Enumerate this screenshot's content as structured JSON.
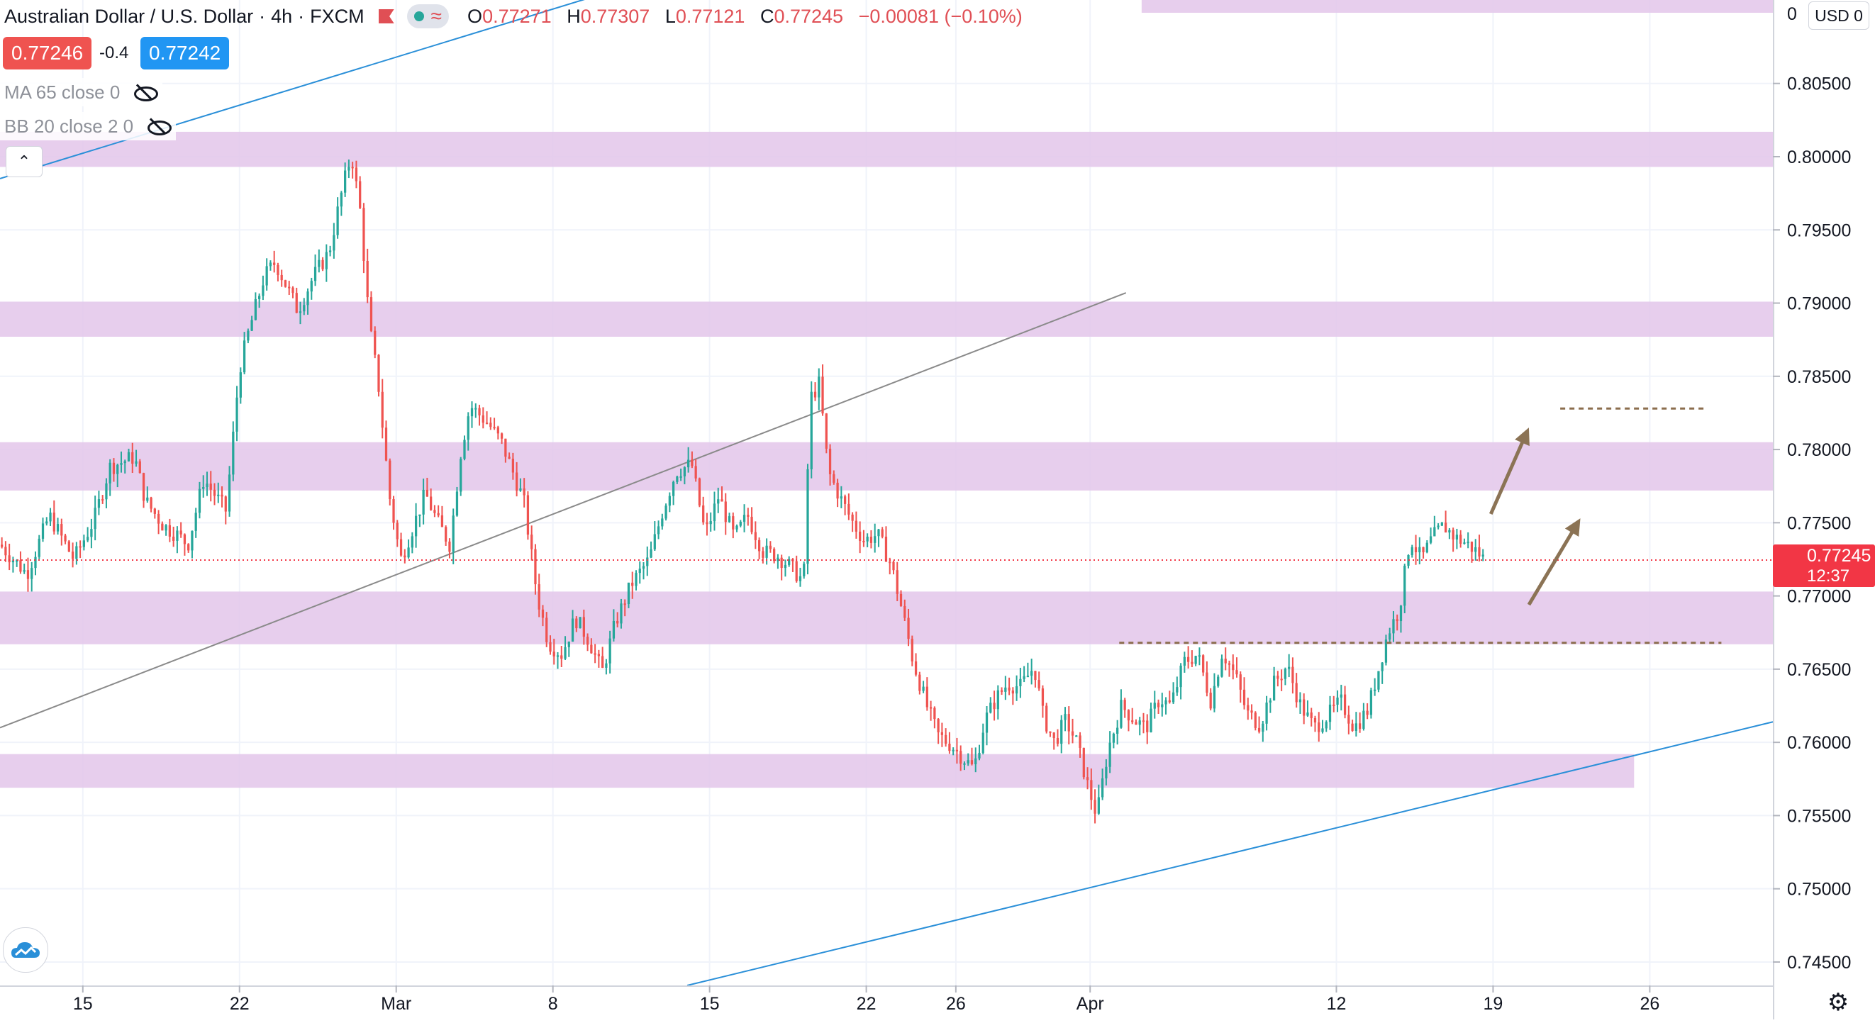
{
  "header": {
    "symbol": "Australian Dollar / U.S. Dollar",
    "interval": "4h",
    "exchange": "FXCM",
    "ohlc": {
      "open_label": "O",
      "open": "0.77271",
      "high_label": "H",
      "high": "0.77307",
      "low_label": "L",
      "low": "0.77121",
      "close_label": "C",
      "close": "0.77245",
      "change": "−0.00081 (−0.10%)"
    },
    "sell_price": "0.77246",
    "change_small": "-0.4",
    "buy_price": "0.77242"
  },
  "indicators": [
    {
      "label": "MA 65 close 0"
    },
    {
      "label": "BB 20 close 2 0"
    }
  ],
  "price_scale": {
    "currency": "USD",
    "currency_suffix": "0",
    "top_partial_label": "0",
    "last_price": "0.77245",
    "countdown": "12:37"
  },
  "colors": {
    "up": "#26a69a",
    "down": "#ef5350",
    "zone": "#e3c6ea",
    "trend_blue": "#2a8fd8",
    "trend_gray": "#8a8a8a",
    "level_brown": "#8b6e4e",
    "arrow_brown": "#8b7355",
    "last_price_red": "#f23645",
    "buy_blue": "#2196f3"
  },
  "chart_data": {
    "type": "candlestick",
    "title": "Australian Dollar / U.S. Dollar",
    "interval": "4h",
    "source": "FXCM",
    "y_axis": {
      "ticks": [
        0.745,
        0.75,
        0.755,
        0.76,
        0.765,
        0.77,
        0.775,
        0.78,
        0.785,
        0.79,
        0.795,
        0.8,
        0.805
      ],
      "tick_labels": [
        "0.74500",
        "0.75000",
        "0.75500",
        "0.76000",
        "0.76500",
        "0.77000",
        "0.77500",
        "0.78000",
        "0.78500",
        "0.79000",
        "0.79500",
        "0.80000",
        "0.80500"
      ],
      "range": [
        0.7434,
        0.8107
      ]
    },
    "x_axis": {
      "ticks": [
        {
          "label": "15",
          "day": 15
        },
        {
          "label": "22",
          "day": 22
        },
        {
          "label": "Mar",
          "day": 29
        },
        {
          "label": "8",
          "day": 36
        },
        {
          "label": "15",
          "day": 43
        },
        {
          "label": "22",
          "day": 50
        },
        {
          "label": "26",
          "day": 54
        },
        {
          "label": "Apr",
          "day": 60
        },
        {
          "label": "12",
          "day": 71
        },
        {
          "label": "19",
          "day": 78
        },
        {
          "label": "26",
          "day": 85
        }
      ],
      "range_days": [
        11.3,
        90.5
      ],
      "note": "day index counted from Feb 0 of 2021; Mar 1 = 29, Apr 1 = 60"
    },
    "grid": true,
    "last_price": 0.77245,
    "anchors": [
      [
        11.3,
        0.7735
      ],
      [
        12.5,
        0.7715
      ],
      [
        13.5,
        0.7755
      ],
      [
        14.6,
        0.7725
      ],
      [
        15.5,
        0.7752
      ],
      [
        16.2,
        0.7788
      ],
      [
        17.3,
        0.7795
      ],
      [
        17.8,
        0.7765
      ],
      [
        18.6,
        0.7748
      ],
      [
        19.2,
        0.7742
      ],
      [
        19.7,
        0.7735
      ],
      [
        20.4,
        0.778
      ],
      [
        21.4,
        0.7758
      ],
      [
        22.0,
        0.7855
      ],
      [
        22.4,
        0.788
      ],
      [
        23.1,
        0.7918
      ],
      [
        23.6,
        0.7928
      ],
      [
        24.6,
        0.7895
      ],
      [
        25.3,
        0.7918
      ],
      [
        26.0,
        0.7935
      ],
      [
        26.6,
        0.7978
      ],
      [
        27.0,
        0.8002
      ],
      [
        27.4,
        0.7962
      ],
      [
        27.8,
        0.7885
      ],
      [
        28.2,
        0.7845
      ],
      [
        28.7,
        0.7768
      ],
      [
        29.2,
        0.7725
      ],
      [
        29.7,
        0.7745
      ],
      [
        30.3,
        0.777
      ],
      [
        30.8,
        0.7752
      ],
      [
        31.4,
        0.7735
      ],
      [
        31.9,
        0.78
      ],
      [
        32.3,
        0.783
      ],
      [
        33.1,
        0.7818
      ],
      [
        33.7,
        0.7805
      ],
      [
        34.2,
        0.7785
      ],
      [
        34.7,
        0.7765
      ],
      [
        35.3,
        0.77
      ],
      [
        35.8,
        0.7668
      ],
      [
        36.4,
        0.766
      ],
      [
        37.0,
        0.7685
      ],
      [
        37.6,
        0.767
      ],
      [
        38.2,
        0.7648
      ],
      [
        38.8,
        0.7682
      ],
      [
        39.5,
        0.7708
      ],
      [
        40.3,
        0.7725
      ],
      [
        40.9,
        0.7758
      ],
      [
        41.5,
        0.7785
      ],
      [
        42.2,
        0.779
      ],
      [
        42.8,
        0.7742
      ],
      [
        43.4,
        0.7768
      ],
      [
        44.1,
        0.774
      ],
      [
        44.7,
        0.7755
      ],
      [
        45.4,
        0.773
      ],
      [
        46.0,
        0.7728
      ],
      [
        46.6,
        0.772
      ],
      [
        47.2,
        0.771
      ],
      [
        47.5,
        0.7835
      ],
      [
        47.9,
        0.7845
      ],
      [
        48.3,
        0.7785
      ],
      [
        48.8,
        0.7768
      ],
      [
        49.4,
        0.775
      ],
      [
        49.9,
        0.7738
      ],
      [
        50.5,
        0.7742
      ],
      [
        51.1,
        0.7722
      ],
      [
        51.6,
        0.769
      ],
      [
        52.1,
        0.7655
      ],
      [
        52.7,
        0.7625
      ],
      [
        53.2,
        0.7605
      ],
      [
        53.8,
        0.7598
      ],
      [
        54.3,
        0.759
      ],
      [
        54.8,
        0.7582
      ],
      [
        55.3,
        0.7615
      ],
      [
        55.8,
        0.763
      ],
      [
        56.3,
        0.764
      ],
      [
        56.9,
        0.7638
      ],
      [
        57.5,
        0.7652
      ],
      [
        57.9,
        0.7618
      ],
      [
        58.4,
        0.76
      ],
      [
        58.9,
        0.7615
      ],
      [
        59.4,
        0.76
      ],
      [
        59.9,
        0.757
      ],
      [
        60.3,
        0.755
      ],
      [
        60.8,
        0.7595
      ],
      [
        61.4,
        0.7625
      ],
      [
        62.0,
        0.7615
      ],
      [
        62.5,
        0.761
      ],
      [
        63.1,
        0.763
      ],
      [
        63.6,
        0.7625
      ],
      [
        64.2,
        0.7655
      ],
      [
        64.8,
        0.766
      ],
      [
        65.4,
        0.7628
      ],
      [
        65.9,
        0.7662
      ],
      [
        66.5,
        0.7645
      ],
      [
        67.0,
        0.762
      ],
      [
        67.6,
        0.7612
      ],
      [
        68.2,
        0.764
      ],
      [
        68.8,
        0.7652
      ],
      [
        69.4,
        0.7625
      ],
      [
        70.0,
        0.761
      ],
      [
        70.6,
        0.7618
      ],
      [
        71.2,
        0.7628
      ],
      [
        71.8,
        0.761
      ],
      [
        72.4,
        0.7622
      ],
      [
        72.8,
        0.7645
      ],
      [
        73.3,
        0.7675
      ],
      [
        73.8,
        0.769
      ],
      [
        74.3,
        0.774
      ],
      [
        74.8,
        0.7725
      ],
      [
        75.3,
        0.774
      ],
      [
        75.8,
        0.7748
      ],
      [
        76.3,
        0.774
      ],
      [
        76.8,
        0.7736
      ],
      [
        77.3,
        0.773
      ],
      [
        77.6,
        0.7725
      ]
    ],
    "resistance_support_zones": [
      {
        "from": 0.7993,
        "to": 0.8017
      },
      {
        "from": 0.7877,
        "to": 0.7901
      },
      {
        "from": 0.7772,
        "to": 0.7805
      },
      {
        "from": 0.7667,
        "to": 0.7703
      },
      {
        "from": 0.7569,
        "to": 0.7592
      }
    ],
    "trendlines": [
      {
        "color": "trend_blue",
        "from": [
          11.3,
          0.7985
        ],
        "to": [
          38.6,
          0.8113
        ]
      },
      {
        "color": "trend_gray",
        "from": [
          11.3,
          0.761
        ],
        "to": [
          61.6,
          0.7907
        ]
      },
      {
        "color": "trend_blue",
        "from": [
          42.0,
          0.7434
        ],
        "to": [
          90.5,
          0.7614
        ]
      }
    ],
    "levels": [
      {
        "value": 0.7668,
        "from_day": 61.3,
        "to_day": 88.2
      },
      {
        "value": 0.7828,
        "from_day": 81.0,
        "to_day": 87.5
      }
    ],
    "arrows": [
      {
        "from": [
          77.9,
          0.7756
        ],
        "to": [
          79.6,
          0.7815
        ]
      },
      {
        "from": [
          79.6,
          0.7694
        ],
        "to": [
          81.9,
          0.7753
        ]
      }
    ]
  }
}
